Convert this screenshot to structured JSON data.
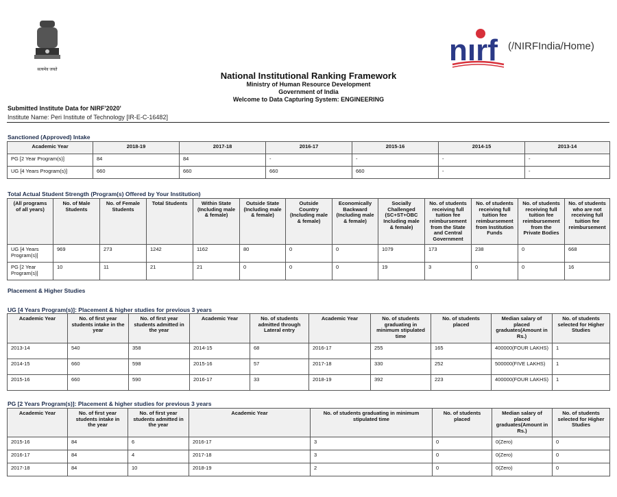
{
  "header": {
    "emblem_caption": "सत्यमेव जयते",
    "logo_text": "nirf",
    "logo_link": "(/NIRFIndia/Home)",
    "title": "National Institutional Ranking Framework",
    "ministry": "Ministry of Human Resource Development",
    "government": "Government of India",
    "welcome": "Welcome to Data Capturing System: ENGINEERING",
    "submitted": "Submitted Institute Data for NIRF'2020'",
    "institute": "Institute Name: Peri Institute of Technology [IR-E-C-16482]",
    "colors": {
      "logo_blue": "#2b3a87",
      "logo_red": "#d7303a"
    }
  },
  "sanctioned": {
    "title": "Sanctioned (Approved) Intake",
    "headers": [
      "Academic Year",
      "2018-19",
      "2017-18",
      "2016-17",
      "2015-16",
      "2014-15",
      "2013-14"
    ],
    "rows": [
      [
        "PG [2 Year Program(s)]",
        "84",
        "84",
        "-",
        "-",
        "-",
        "-"
      ],
      [
        "UG [4 Years Program(s)]",
        "660",
        "660",
        "660",
        "660",
        "-",
        "-"
      ]
    ]
  },
  "strength": {
    "title": "Total Actual Student Strength (Program(s) Offered by Your Institution)",
    "headers": [
      "(All programs of all years)",
      "No. of Male Students",
      "No. of Female Students",
      "Total Students",
      "Within State (Including male & female)",
      "Outside State (Including male & female)",
      "Outside Country (Including male & female)",
      "Economically Backward (Including male & female)",
      "Socially Challenged (SC+ST+OBC Including male & female)",
      "No. of students receiving full tuition fee reimbursement from the State and Central Government",
      "No. of students receiving full tuition fee reimbursement from Institution Funds",
      "No. of students receiving full tuition fee reimbursement from the Private Bodies",
      "No. of students who are not receiving full tuition fee reimbursement"
    ],
    "rows": [
      [
        "UG [4 Years Program(s)]",
        "969",
        "273",
        "1242",
        "1162",
        "80",
        "0",
        "0",
        "1079",
        "173",
        "238",
        "0",
        "668"
      ],
      [
        "PG [2 Year Program(s)]",
        "10",
        "11",
        "21",
        "21",
        "0",
        "0",
        "0",
        "19",
        "3",
        "0",
        "0",
        "16"
      ]
    ]
  },
  "placement_title": "Placement & Higher Studies",
  "ug_placement": {
    "title": "UG [4 Years Program(s)]: Placement & higher studies for previous 3 years",
    "headers": [
      "Academic Year",
      "No. of first year students intake in the year",
      "No. of first year students admitted in the year",
      "Academic Year",
      "No. of students admitted through Lateral entry",
      "Academic Year",
      "No. of students graduating in minimum stipulated time",
      "No. of students placed",
      "Median salary of placed graduates(Amount in Rs.)",
      "No. of students selected for Higher Studies"
    ],
    "rows": [
      [
        "2013-14",
        "540",
        "358",
        "2014-15",
        "68",
        "2016-17",
        "255",
        "165",
        "400000(FOUR LAKHS)",
        "1"
      ],
      [
        "2014-15",
        "660",
        "598",
        "2015-16",
        "57",
        "2017-18",
        "330",
        "252",
        "500000(FIVE LAKHS)",
        "1"
      ],
      [
        "2015-16",
        "660",
        "590",
        "2016-17",
        "33",
        "2018-19",
        "392",
        "223",
        "400000(FOUR LAKHS)",
        "1"
      ]
    ]
  },
  "pg_placement": {
    "title": "PG [2 Years Program(s)]: Placement & higher studies for previous 3 years",
    "headers": [
      "Academic Year",
      "No. of first year students intake in the year",
      "No. of first year students admitted in the year",
      "Academic Year",
      "No. of students graduating in minimum stipulated time",
      "No. of students placed",
      "Median salary of placed graduates(Amount in Rs.)",
      "No. of students selected for Higher Studies"
    ],
    "rows": [
      [
        "2015-16",
        "84",
        "6",
        "2016-17",
        "3",
        "0",
        "0(Zero)",
        "0"
      ],
      [
        "2016-17",
        "84",
        "4",
        "2017-18",
        "3",
        "0",
        "0(Zero)",
        "0"
      ],
      [
        "2017-18",
        "84",
        "10",
        "2018-19",
        "2",
        "0",
        "0(Zero)",
        "0"
      ]
    ]
  }
}
